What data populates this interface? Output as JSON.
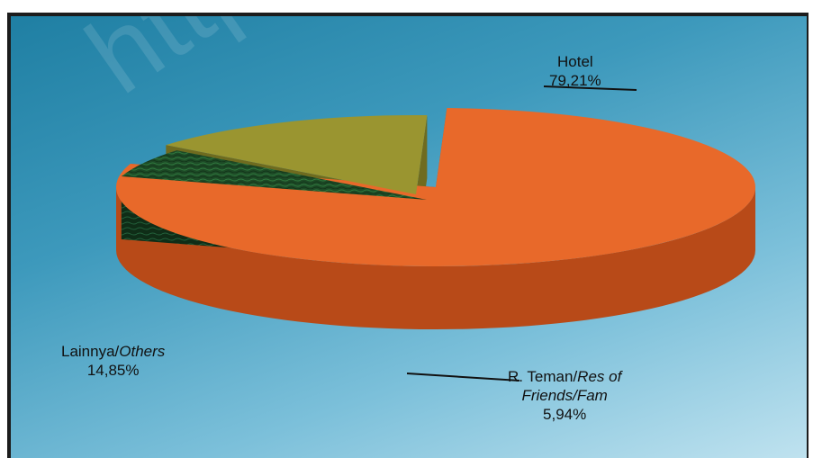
{
  "chart_data": {
    "type": "pie",
    "three_d": true,
    "exploded_slices": [
      "R. Teman/Res of Friends/Fam",
      "Lainnya/Others"
    ],
    "legend": "none",
    "slices": [
      {
        "label_main": "Hotel",
        "label_italic": "",
        "label_line2": "",
        "value": 79.21,
        "display_value": "79,21%",
        "color_top": "#e8692a",
        "color_side": "#b84a18"
      },
      {
        "label_main": "R. Teman/",
        "label_italic": "Res of",
        "label_line2": "Friends/Fam",
        "value": 5.94,
        "display_value": "5,94%",
        "color_top": "#1d4a26",
        "color_side": "#0f2d17"
      },
      {
        "label_main": "Lainnya/",
        "label_italic": "Others",
        "label_line2": "",
        "value": 14.85,
        "display_value": "14,85%",
        "color_top": "#9a9530",
        "color_side": "#6f6b1f"
      }
    ]
  },
  "watermark": "http"
}
